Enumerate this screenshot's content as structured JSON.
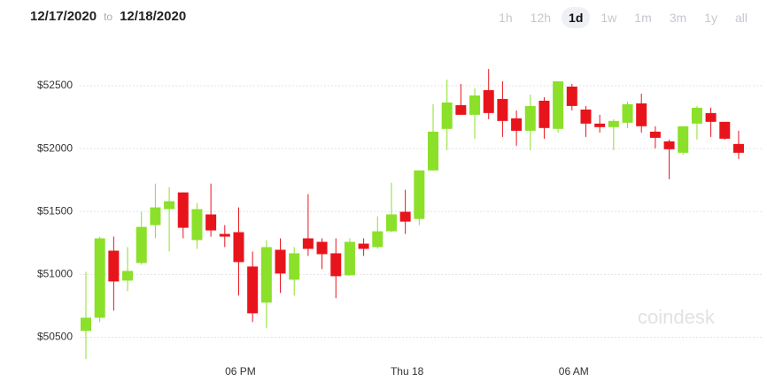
{
  "header": {
    "from": "12/17/2020",
    "separator": "to",
    "to": "12/18/2020",
    "ranges": [
      "1h",
      "12h",
      "1d",
      "1w",
      "1m",
      "3m",
      "1y",
      "all"
    ],
    "selected_range": "1d"
  },
  "watermark": "coindesk",
  "chart_data": {
    "type": "candlestick",
    "categories": [
      null,
      null,
      null,
      null,
      null,
      null,
      null,
      null,
      null,
      null,
      null,
      "06 PM",
      null,
      null,
      null,
      null,
      null,
      null,
      null,
      null,
      null,
      null,
      null,
      "Thu 18",
      null,
      null,
      null,
      null,
      null,
      null,
      null,
      null,
      null,
      null,
      null,
      "06 AM",
      null,
      null,
      null,
      null,
      null,
      null,
      null,
      null,
      null,
      null,
      null,
      null
    ],
    "open": [
      50551,
      50656,
      51189,
      50951,
      51091,
      51392,
      51519,
      51652,
      51273,
      51477,
      51322,
      51336,
      51063,
      50776,
      51196,
      50958,
      51287,
      51259,
      51168,
      50993,
      51245,
      51217,
      51343,
      51498,
      51441,
      51827,
      52157,
      52346,
      52269,
      52465,
      52395,
      52241,
      52142,
      52381,
      52157,
      52493,
      52311,
      52199,
      52171,
      52206,
      52360,
      52135,
      52058,
      51967,
      52199,
      52283,
      52213,
      52037
    ],
    "high": [
      51021,
      51301,
      51301,
      51217,
      51498,
      51722,
      51694,
      51652,
      51568,
      51722,
      51392,
      51533,
      51182,
      51273,
      51287,
      51217,
      51638,
      51287,
      51287,
      51287,
      51287,
      51463,
      51729,
      51673,
      51827,
      52353,
      52549,
      52514,
      52479,
      52633,
      52535,
      52304,
      52430,
      52409,
      52535,
      52514,
      52339,
      52269,
      52234,
      52374,
      52437,
      52178,
      52072,
      52178,
      52339,
      52325,
      52213,
      52142
    ],
    "low": [
      50327,
      50621,
      50712,
      50867,
      51077,
      51287,
      51182,
      51287,
      51203,
      51301,
      51217,
      50832,
      50621,
      50572,
      50853,
      50832,
      51147,
      51042,
      50811,
      50993,
      51147,
      51203,
      51336,
      51322,
      51392,
      51827,
      51988,
      52269,
      52079,
      52234,
      52093,
      52023,
      51988,
      52079,
      52128,
      52304,
      52093,
      52128,
      51988,
      52164,
      52128,
      52002,
      51757,
      51953,
      52072,
      52093,
      52072,
      51918
    ],
    "close": [
      50656,
      51287,
      50944,
      51028,
      51378,
      51533,
      51582,
      51371,
      51519,
      51350,
      51301,
      51098,
      50691,
      51217,
      51007,
      51168,
      51203,
      51161,
      50986,
      51259,
      51203,
      51343,
      51477,
      51420,
      51827,
      52135,
      52367,
      52269,
      52423,
      52283,
      52220,
      52142,
      52339,
      52164,
      52535,
      52339,
      52199,
      52171,
      52220,
      52353,
      52178,
      52086,
      51995,
      52178,
      52325,
      52213,
      52079,
      51967
    ],
    "up_color": "#8be02a",
    "down_color": "#e8141c",
    "ylim": [
      50300,
      52760
    ],
    "yticks": [
      {
        "value": 50500,
        "label": "$50500"
      },
      {
        "value": 51000,
        "label": "$51000"
      },
      {
        "value": 51500,
        "label": "$51500"
      },
      {
        "value": 52000,
        "label": "$52000"
      },
      {
        "value": 52500,
        "label": "$52500"
      }
    ],
    "grid": true
  }
}
